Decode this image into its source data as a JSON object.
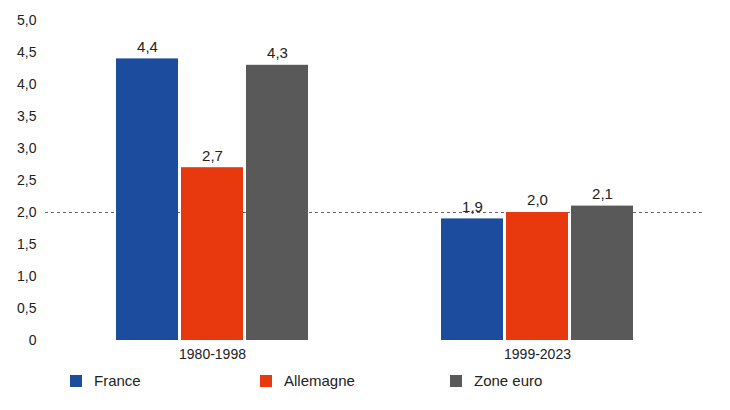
{
  "chart_data": {
    "type": "bar",
    "categories": [
      "1980-1998",
      "1999-2023"
    ],
    "series": [
      {
        "name": "France",
        "color": "#1b4c9e",
        "values": [
          4.4,
          1.9
        ],
        "value_labels": [
          "4,4",
          "1,9"
        ]
      },
      {
        "name": "Allemagne",
        "color": "#e8380d",
        "values": [
          2.7,
          2.0
        ],
        "value_labels": [
          "2,7",
          "2,0"
        ]
      },
      {
        "name": "Zone euro",
        "color": "#595959",
        "values": [
          4.3,
          2.1
        ],
        "value_labels": [
          "4,3",
          "2,1"
        ]
      }
    ],
    "ylim": [
      0,
      5
    ],
    "yticks": [
      0,
      {
        "value": 0.5,
        "label": "0,5"
      },
      {
        "value": 1,
        "label": "1,0"
      },
      {
        "value": 1.5,
        "label": "1,5"
      },
      {
        "value": 2,
        "label": "2,0"
      },
      {
        "value": 2.5,
        "label": "2,5"
      },
      {
        "value": 3,
        "label": "3,0"
      },
      {
        "value": 3.5,
        "label": "3,5"
      },
      {
        "value": 4,
        "label": "4,0"
      },
      {
        "value": 4.5,
        "label": "4,5"
      },
      {
        "value": 5,
        "label": "5,0"
      }
    ],
    "reference_lines": [
      2
    ],
    "data_labels": true,
    "grid": false,
    "legend": "bottom"
  }
}
